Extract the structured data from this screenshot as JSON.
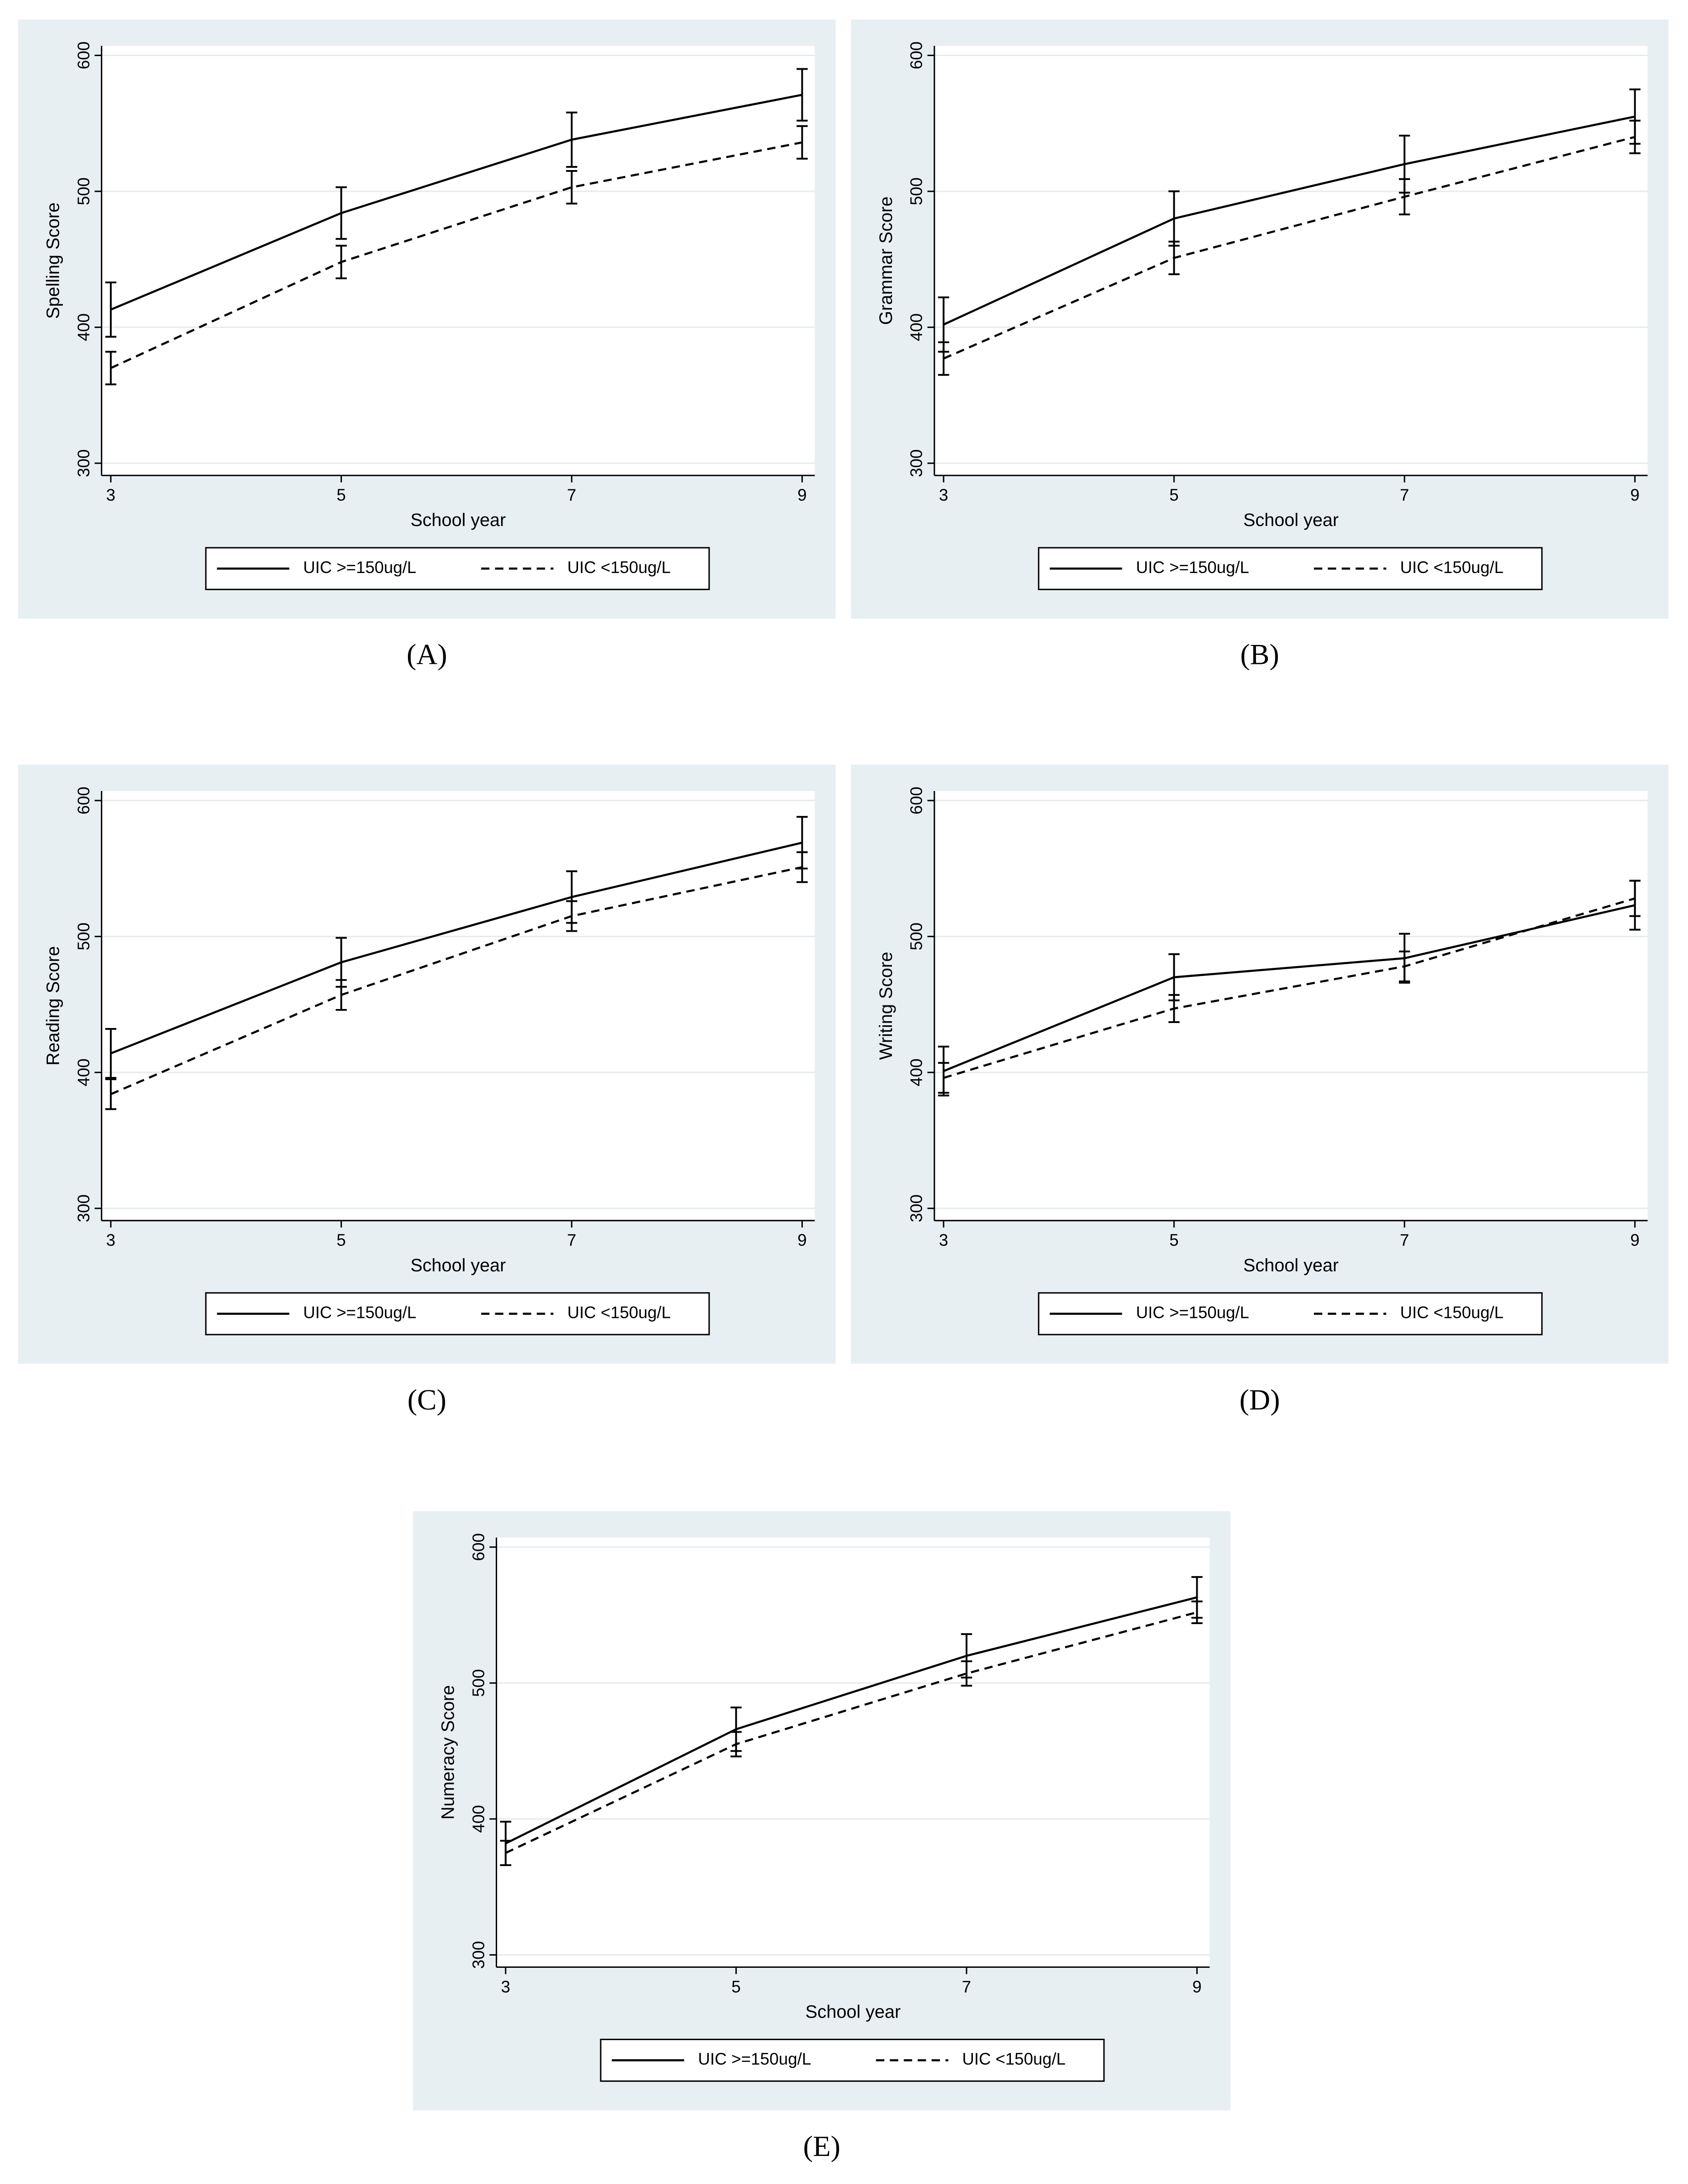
{
  "chart_data": [
    {
      "type": "line",
      "panel_label": "(A)",
      "ylabel": "Spelling Score",
      "xlabel": "School year",
      "x": [
        3,
        5,
        7,
        9
      ],
      "xlim": [
        2.92,
        9.11
      ],
      "ylim": [
        291,
        607
      ],
      "xticks": [
        3,
        5,
        7,
        9
      ],
      "yticks": [
        300,
        400,
        500,
        600
      ],
      "grid": true,
      "series": [
        {
          "name": "UIC >=150ug/L",
          "color": "#000000",
          "dash": "solid",
          "values": [
            413,
            484,
            538,
            571
          ],
          "errors": [
            20,
            19,
            20,
            19
          ]
        },
        {
          "name": "UIC <150ug/L",
          "color": "#000000",
          "dash": "dashed",
          "values": [
            370,
            448,
            503,
            536
          ],
          "errors": [
            12,
            12,
            12,
            12
          ]
        }
      ]
    },
    {
      "type": "line",
      "panel_label": "(B)",
      "ylabel": "Grammar Score",
      "xlabel": "School year",
      "x": [
        3,
        5,
        7,
        9
      ],
      "xlim": [
        2.92,
        9.11
      ],
      "ylim": [
        291,
        607
      ],
      "xticks": [
        3,
        5,
        7,
        9
      ],
      "yticks": [
        300,
        400,
        500,
        600
      ],
      "grid": true,
      "series": [
        {
          "name": "UIC >=150ug/L",
          "color": "#000000",
          "dash": "solid",
          "values": [
            402,
            480,
            520,
            555
          ],
          "errors": [
            20,
            20,
            21,
            20
          ]
        },
        {
          "name": "UIC <150ug/L",
          "color": "#000000",
          "dash": "dashed",
          "values": [
            377,
            451,
            496,
            540
          ],
          "errors": [
            12,
            12,
            13,
            12
          ]
        }
      ]
    },
    {
      "type": "line",
      "panel_label": "(C)",
      "ylabel": "Reading Score",
      "xlabel": "School year",
      "x": [
        3,
        5,
        7,
        9
      ],
      "xlim": [
        2.92,
        9.11
      ],
      "ylim": [
        291,
        607
      ],
      "xticks": [
        3,
        5,
        7,
        9
      ],
      "yticks": [
        300,
        400,
        500,
        600
      ],
      "grid": true,
      "series": [
        {
          "name": "UIC >=150ug/L",
          "color": "#000000",
          "dash": "solid",
          "values": [
            414,
            481,
            529,
            569
          ],
          "errors": [
            18,
            18,
            19,
            19
          ]
        },
        {
          "name": "UIC <150ug/L",
          "color": "#000000",
          "dash": "dashed",
          "values": [
            384,
            457,
            515,
            551
          ],
          "errors": [
            11,
            11,
            11,
            11
          ]
        }
      ]
    },
    {
      "type": "line",
      "panel_label": "(D)",
      "ylabel": "Writing Score",
      "xlabel": "School year",
      "x": [
        3,
        5,
        7,
        9
      ],
      "xlim": [
        2.92,
        9.11
      ],
      "ylim": [
        291,
        607
      ],
      "xticks": [
        3,
        5,
        7,
        9
      ],
      "yticks": [
        300,
        400,
        500,
        600
      ],
      "grid": true,
      "series": [
        {
          "name": "UIC >=150ug/L",
          "color": "#000000",
          "dash": "solid",
          "values": [
            401,
            470,
            484,
            523
          ],
          "errors": [
            18,
            17,
            18,
            18
          ]
        },
        {
          "name": "UIC <150ug/L",
          "color": "#000000",
          "dash": "dashed",
          "values": [
            396,
            447,
            478,
            528
          ],
          "errors": [
            11,
            10,
            11,
            13
          ]
        }
      ]
    },
    {
      "type": "line",
      "panel_label": "(E)",
      "ylabel": "Numeracy Score",
      "xlabel": "School year",
      "x": [
        3,
        5,
        7,
        9
      ],
      "xlim": [
        2.92,
        9.11
      ],
      "ylim": [
        291,
        607
      ],
      "xticks": [
        3,
        5,
        7,
        9
      ],
      "yticks": [
        300,
        400,
        500,
        600
      ],
      "grid": true,
      "series": [
        {
          "name": "UIC >=150ug/L",
          "color": "#000000",
          "dash": "solid",
          "values": [
            382,
            466,
            520,
            563
          ],
          "errors": [
            16,
            16,
            16,
            15
          ]
        },
        {
          "name": "UIC <150ug/L",
          "color": "#000000",
          "dash": "dashed",
          "values": [
            375,
            455,
            507,
            552
          ],
          "errors": [
            9,
            9,
            9,
            8
          ]
        }
      ]
    }
  ]
}
